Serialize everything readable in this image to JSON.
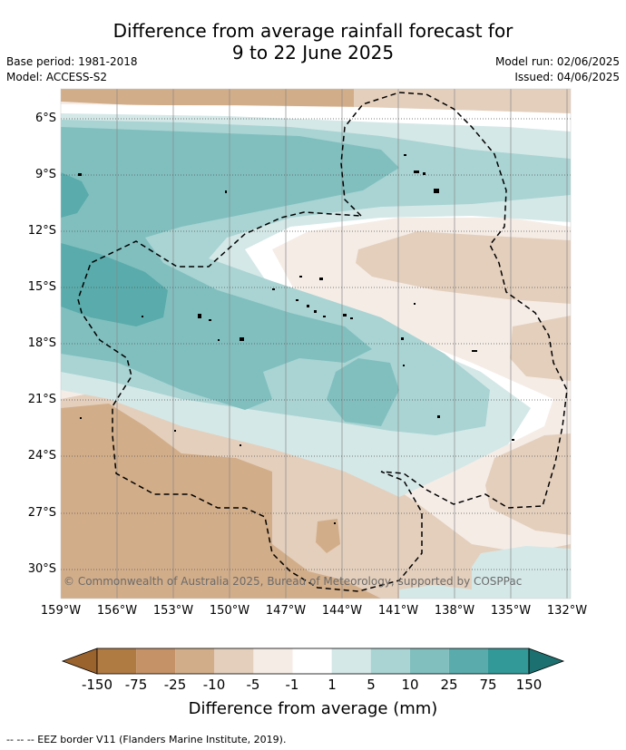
{
  "title_line1": "Difference from average rainfall forecast for",
  "title_line2": "9 to 22 June 2025",
  "base_period": "Base period: 1981-2018",
  "model": "Model: ACCESS-S2",
  "model_run": "Model run: 02/06/2025",
  "issued": "Issued: 04/06/2025",
  "copyright": "© Commonwealth of Australia 2025, Bureau of Meteorology, supported by COSPPac",
  "footer": "--  --  -- EEZ border V11 (Flanders Marine Institute, 2019).",
  "map": {
    "lat_labels": [
      "6°S",
      "9°S",
      "12°S",
      "15°S",
      "18°S",
      "21°S",
      "24°S",
      "27°S",
      "30°S"
    ],
    "lon_labels": [
      "159°W",
      "156°W",
      "153°W",
      "150°W",
      "147°W",
      "144°W",
      "141°W",
      "138°W",
      "135°W",
      "132°W"
    ]
  },
  "colorbar": {
    "title": "Difference from average (mm)",
    "labels": [
      "-150",
      "-75",
      "-25",
      "-10",
      "-5",
      "-1",
      "1",
      "5",
      "10",
      "25",
      "75",
      "150"
    ],
    "colors": [
      "#b07a43",
      "#c49266",
      "#d2ad89",
      "#e4cfbc",
      "#f5ece6",
      "#ffffff",
      "#d4e8e7",
      "#a9d4d3",
      "#81bfbf",
      "#5aabab",
      "#339898",
      "#1d7070"
    ],
    "low_arrow_color": "#9a622c",
    "high_arrow_color": "#1d7070"
  }
}
